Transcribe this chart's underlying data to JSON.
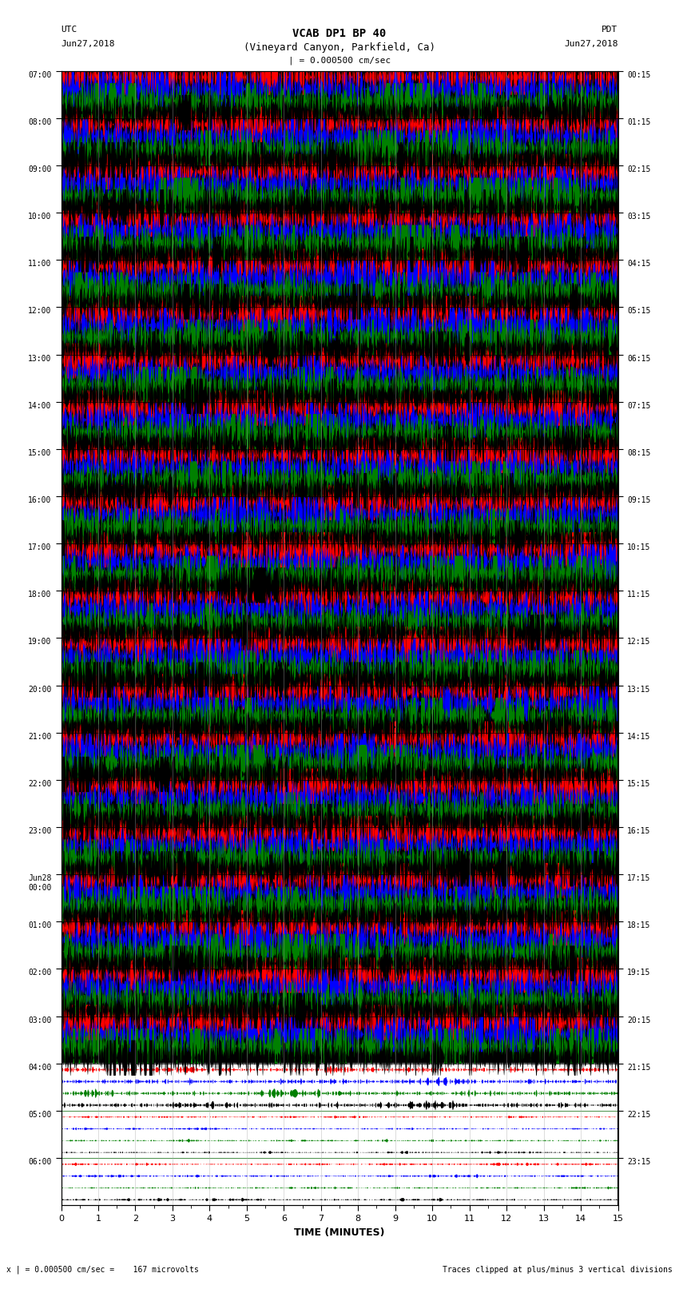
{
  "title_line1": "VCAB DP1 BP 40",
  "title_line2": "(Vineyard Canyon, Parkfield, Ca)",
  "scale_label": "| = 0.000500 cm/sec",
  "left_timezone": "UTC",
  "left_date": "Jun27,2018",
  "right_timezone": "PDT",
  "right_date": "Jun27,2018",
  "bottom_label": "TIME (MINUTES)",
  "bottom_note_left": "x | = 0.000500 cm/sec =    167 microvolts",
  "bottom_note_right": "Traces clipped at plus/minus 3 vertical divisions",
  "left_times": [
    "07:00",
    "08:00",
    "09:00",
    "10:00",
    "11:00",
    "12:00",
    "13:00",
    "14:00",
    "15:00",
    "16:00",
    "17:00",
    "18:00",
    "19:00",
    "20:00",
    "21:00",
    "22:00",
    "23:00",
    "Jun28\n00:00",
    "01:00",
    "02:00",
    "03:00",
    "04:00",
    "05:00",
    "06:00"
  ],
  "right_times": [
    "00:15",
    "01:15",
    "02:15",
    "03:15",
    "04:15",
    "05:15",
    "06:15",
    "07:15",
    "08:15",
    "09:15",
    "10:15",
    "11:15",
    "12:15",
    "13:15",
    "14:15",
    "15:15",
    "16:15",
    "17:15",
    "18:15",
    "19:15",
    "20:15",
    "21:15",
    "22:15",
    "23:15"
  ],
  "num_traces": 24,
  "minutes_per_trace": 15,
  "bg_color": "white",
  "figsize": [
    8.5,
    16.13
  ],
  "dpi": 100,
  "seed": 42,
  "quiet_traces": [
    21,
    22,
    23
  ],
  "very_quiet_traces": [
    22,
    23
  ]
}
